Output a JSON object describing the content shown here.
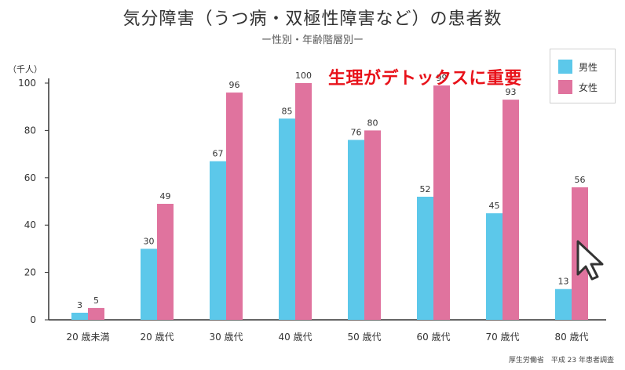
{
  "chart_data": {
    "type": "bar",
    "title": "気分障害（うつ病・双極性障害など）の患者数",
    "subtitle": "ー性別・年齢階層別ー",
    "ylabel": "（千人）",
    "ylim": [
      0,
      100
    ],
    "yticks": [
      "0",
      "20",
      "40",
      "60",
      "80",
      "100"
    ],
    "categories": [
      "20 歳未満",
      "20 歳代",
      "30 歳代",
      "40 歳代",
      "50 歳代",
      "60 歳代",
      "70 歳代",
      "80 歳代"
    ],
    "series": [
      {
        "name": "男性",
        "color": "#5cc8ea",
        "values": [
          3,
          30,
          67,
          85,
          76,
          52,
          45,
          13
        ]
      },
      {
        "name": "女性",
        "color": "#e0739e",
        "values": [
          5,
          49,
          96,
          100,
          80,
          99,
          93,
          56
        ]
      }
    ],
    "legend_position": "top-right",
    "grid": false
  },
  "overlay_text": "生理がデトックスに重要",
  "source_note": "厚生労働省　平成 23 年患者調査"
}
